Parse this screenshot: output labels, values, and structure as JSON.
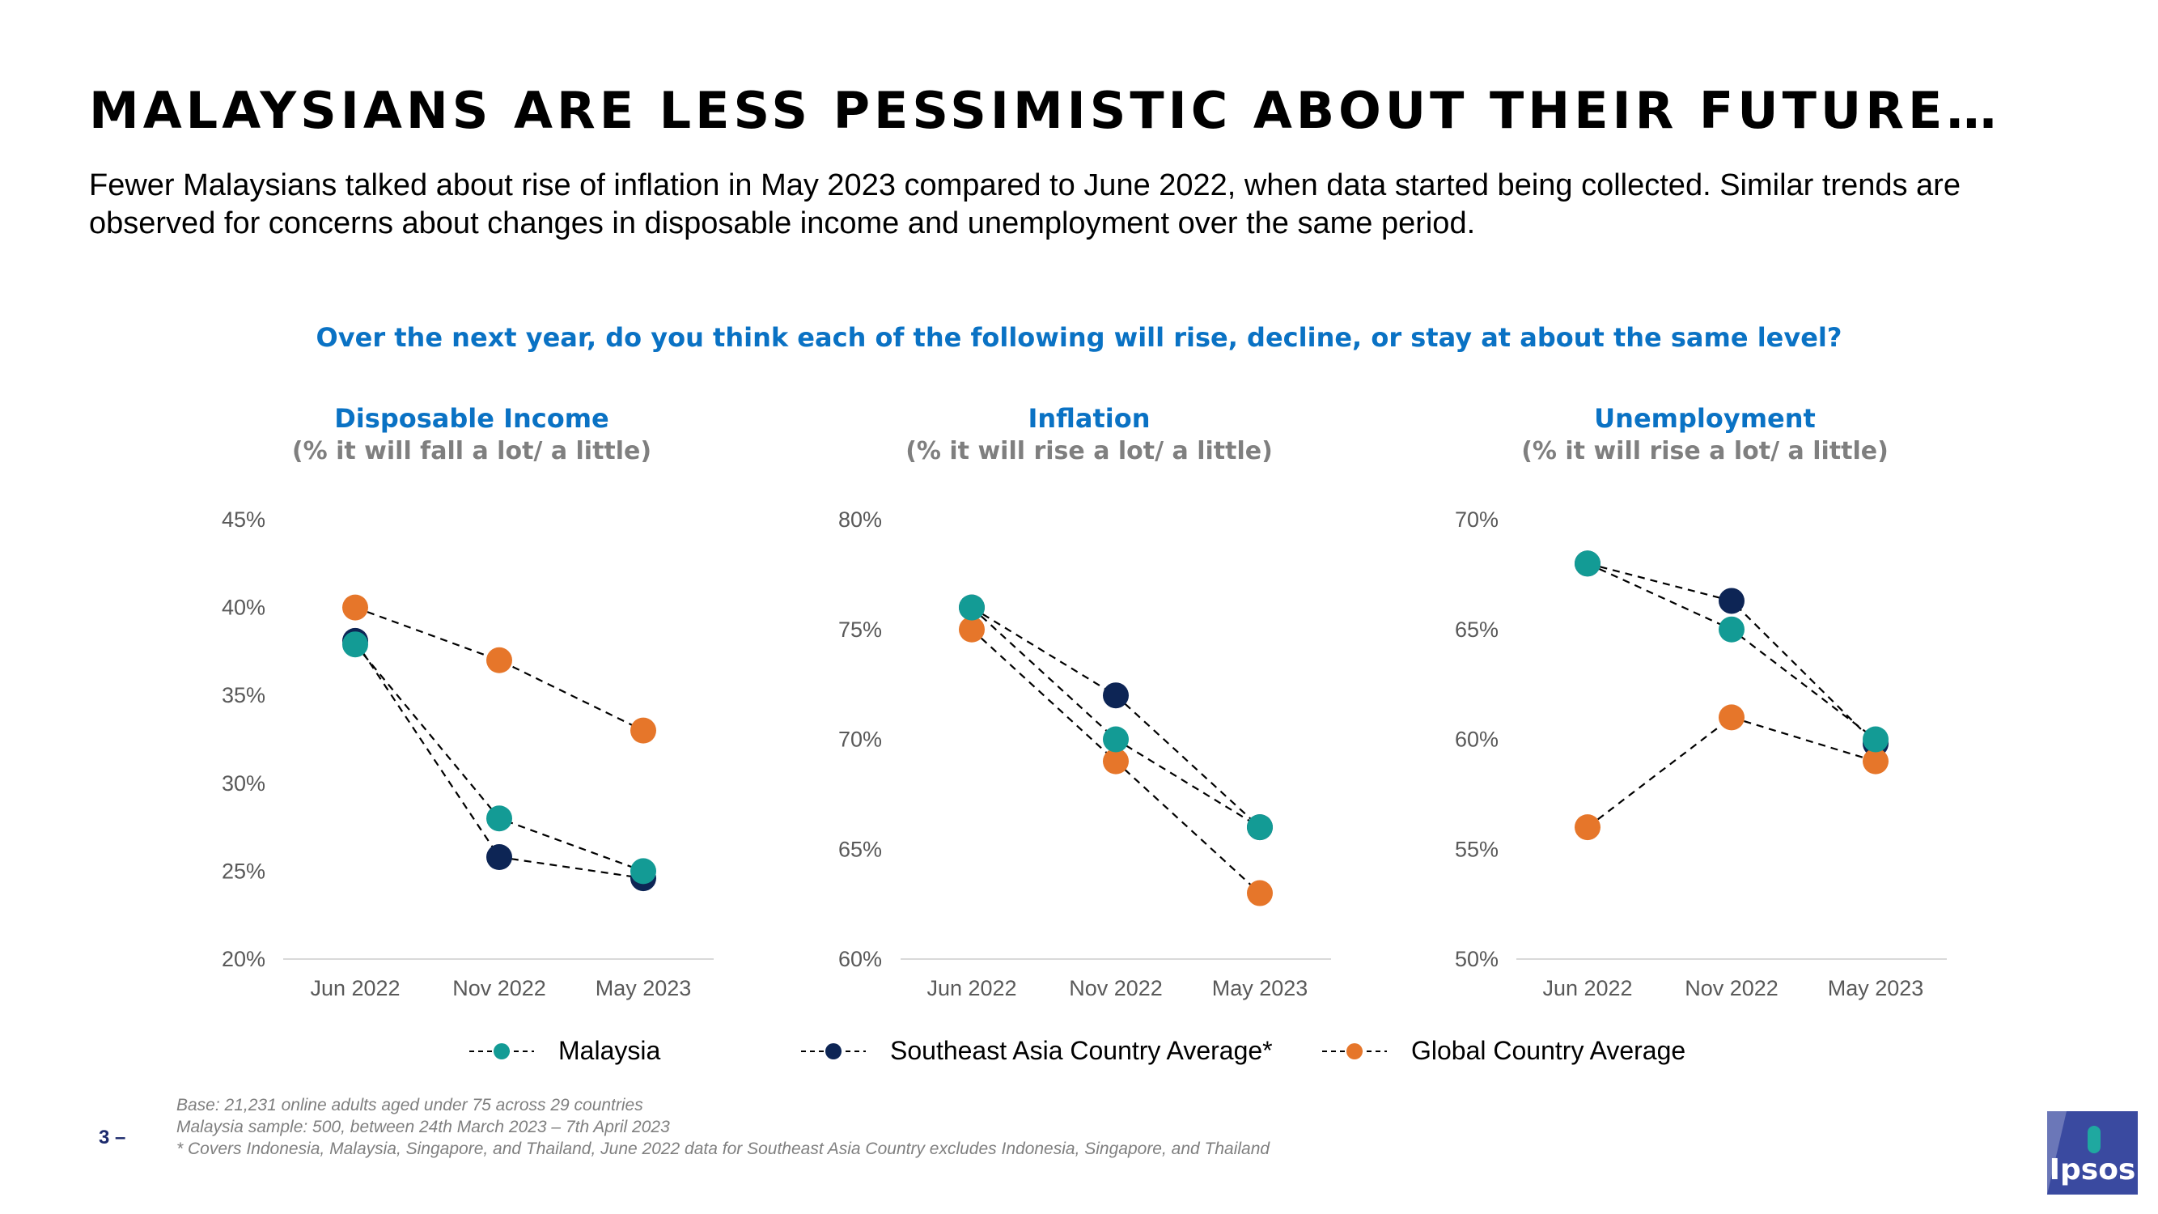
{
  "header": {
    "title": "MALAYSIANS ARE LESS PESSIMISTIC ABOUT THEIR FUTURE…",
    "subtitle": "Fewer Malaysians talked about rise of inflation in May 2023 compared to June 2022, when data started being collected.  Similar trends are observed for concerns about changes in disposable income and unemployment over the same period.",
    "question": "Over the next year, do you think each of the following will rise, decline, or stay at about the same level?"
  },
  "colors": {
    "malaysia": "#139b95",
    "sea": "#0d2555",
    "global": "#e6762a",
    "question": "#0a72c4"
  },
  "legend": {
    "malaysia": "Malaysia",
    "sea": "Southeast Asia Country Average*",
    "global": "Global Country Average"
  },
  "chart_data": [
    {
      "type": "line",
      "title": "Disposable Income",
      "subtitle": "(% it will fall a lot/ a little)",
      "categories": [
        "Jun 2022",
        "Nov 2022",
        "May 2023"
      ],
      "ylim": [
        20,
        45
      ],
      "yticks": [
        20,
        25,
        30,
        35,
        40,
        45
      ],
      "series": [
        {
          "name": "Southeast Asia Country Average*",
          "key": "sea",
          "values": [
            38.1,
            25.8,
            24.6
          ]
        },
        {
          "name": "Global Country Average",
          "key": "global",
          "values": [
            40,
            37,
            33
          ]
        },
        {
          "name": "Malaysia",
          "key": "malaysia",
          "values": [
            37.9,
            28,
            25
          ]
        }
      ]
    },
    {
      "type": "line",
      "title": "Inflation",
      "subtitle": "(% it will rise a lot/ a little)",
      "categories": [
        "Jun 2022",
        "Nov 2022",
        "May 2023"
      ],
      "ylim": [
        60,
        80
      ],
      "yticks": [
        60,
        65,
        70,
        75,
        80
      ],
      "series": [
        {
          "name": "Southeast Asia Country Average*",
          "key": "sea",
          "values": [
            76,
            72,
            66
          ]
        },
        {
          "name": "Global Country Average",
          "key": "global",
          "values": [
            75,
            69,
            63
          ]
        },
        {
          "name": "Malaysia",
          "key": "malaysia",
          "values": [
            76,
            70,
            66
          ]
        }
      ]
    },
    {
      "type": "line",
      "title": "Unemployment",
      "subtitle": "(% it will rise a lot/ a little)",
      "categories": [
        "Jun 2022",
        "Nov 2022",
        "May 2023"
      ],
      "ylim": [
        50,
        70
      ],
      "yticks": [
        50,
        55,
        60,
        65,
        70
      ],
      "series": [
        {
          "name": "Southeast Asia Country Average*",
          "key": "sea",
          "values": [
            68,
            66.3,
            59.8
          ]
        },
        {
          "name": "Global Country Average",
          "key": "global",
          "values": [
            56,
            61,
            59
          ]
        },
        {
          "name": "Malaysia",
          "key": "malaysia",
          "values": [
            68,
            65,
            60
          ]
        }
      ]
    }
  ],
  "footnote": {
    "base": "Base: 21,231 online adults aged under 75 across 29 countries",
    "sample": "Malaysia sample: 500, between 24th March 2023 – 7th April 2023",
    "covers": "* Covers Indonesia, Malaysia, Singapore, and Thailand, June 2022 data for Southeast Asia Country excludes Indonesia, Singapore, and Thailand"
  },
  "page_number": "3 –",
  "logo_text": "Ipsos"
}
